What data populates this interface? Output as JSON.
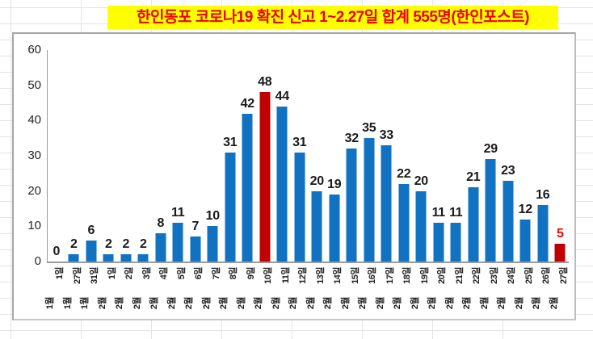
{
  "title": {
    "text": "한인동포 코로나19 확진 신고 1~2.27일 합계 555명(한인포스트)",
    "bg_color": "#FFFF00",
    "text_color": "#EE0000"
  },
  "chart_data": {
    "type": "bar",
    "title": "한인동포 코로나19 확진 신고 1~2.27일 합계 555명(한인포스트)",
    "categories": [
      "1월1일",
      "1월27일",
      "1월31일",
      "2월 1일",
      "2월 2일",
      "2월 3일",
      "2월 4일",
      "2월 5일",
      "2월 6일",
      "2월 7일",
      "2월 8일",
      "2월 9일",
      "2월 10일",
      "2월 11일",
      "2월 12일",
      "2월 13일",
      "2월 14일",
      "2월 15일",
      "2월 16일",
      "2월 17일",
      "2월 18일",
      "2월 19일",
      "2월 20일",
      "2월 21일",
      "2월 22일",
      "2월 23일",
      "2월 24일",
      "2월 25일",
      "2월 26일",
      "2월 27일"
    ],
    "values": [
      0,
      2,
      6,
      2,
      2,
      2,
      8,
      11,
      7,
      10,
      31,
      42,
      48,
      44,
      31,
      20,
      19,
      32,
      35,
      33,
      22,
      20,
      11,
      11,
      21,
      29,
      23,
      12,
      16,
      5
    ],
    "total": 555,
    "bar_color": "#1072C0",
    "highlight_color": "#C00000",
    "highlight_indices": [
      12,
      29
    ],
    "red_label_indices": [
      29
    ],
    "red_label_color": "#FF0000",
    "label_color": "#1a1a1a",
    "xlabel": "",
    "ylabel": "",
    "ylim": [
      0,
      60
    ],
    "yticks": [
      0,
      10,
      20,
      30,
      40,
      50,
      60
    ],
    "grid": false,
    "data_labels": true,
    "legend": "none"
  }
}
